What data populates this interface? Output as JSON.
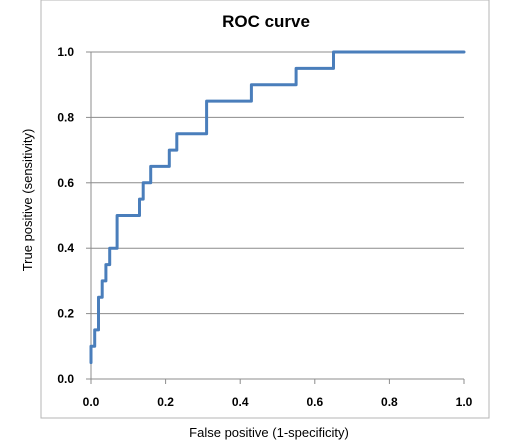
{
  "chart_data": {
    "type": "line",
    "title": "ROC curve",
    "xlabel": "False positive (1-specificity)",
    "ylabel": "True positive (sensitivity)",
    "xlim": [
      0,
      1
    ],
    "ylim": [
      0,
      1
    ],
    "x_ticks": [
      "0.0",
      "0.2",
      "0.4",
      "0.6",
      "0.8",
      "1.0"
    ],
    "y_ticks": [
      "0.0",
      "0.2",
      "0.4",
      "0.6",
      "0.8",
      "1.0"
    ],
    "grid": "horizontal",
    "legend": "none",
    "line_color": "#4a7ebb",
    "series": [
      {
        "x": [
          0.0,
          0.0,
          0.01,
          0.01,
          0.02,
          0.02,
          0.03,
          0.03,
          0.04,
          0.04,
          0.05,
          0.05,
          0.07,
          0.07,
          0.13,
          0.13,
          0.14,
          0.14,
          0.16,
          0.16,
          0.21,
          0.21,
          0.23,
          0.23,
          0.31,
          0.31,
          0.43,
          0.43,
          0.55,
          0.55,
          0.65,
          0.65,
          1.0
        ],
        "y": [
          0.05,
          0.1,
          0.1,
          0.15,
          0.15,
          0.25,
          0.25,
          0.3,
          0.3,
          0.35,
          0.35,
          0.4,
          0.4,
          0.5,
          0.5,
          0.55,
          0.55,
          0.6,
          0.6,
          0.65,
          0.65,
          0.7,
          0.7,
          0.75,
          0.75,
          0.85,
          0.85,
          0.9,
          0.9,
          0.95,
          0.95,
          1.0,
          1.0
        ]
      }
    ]
  }
}
